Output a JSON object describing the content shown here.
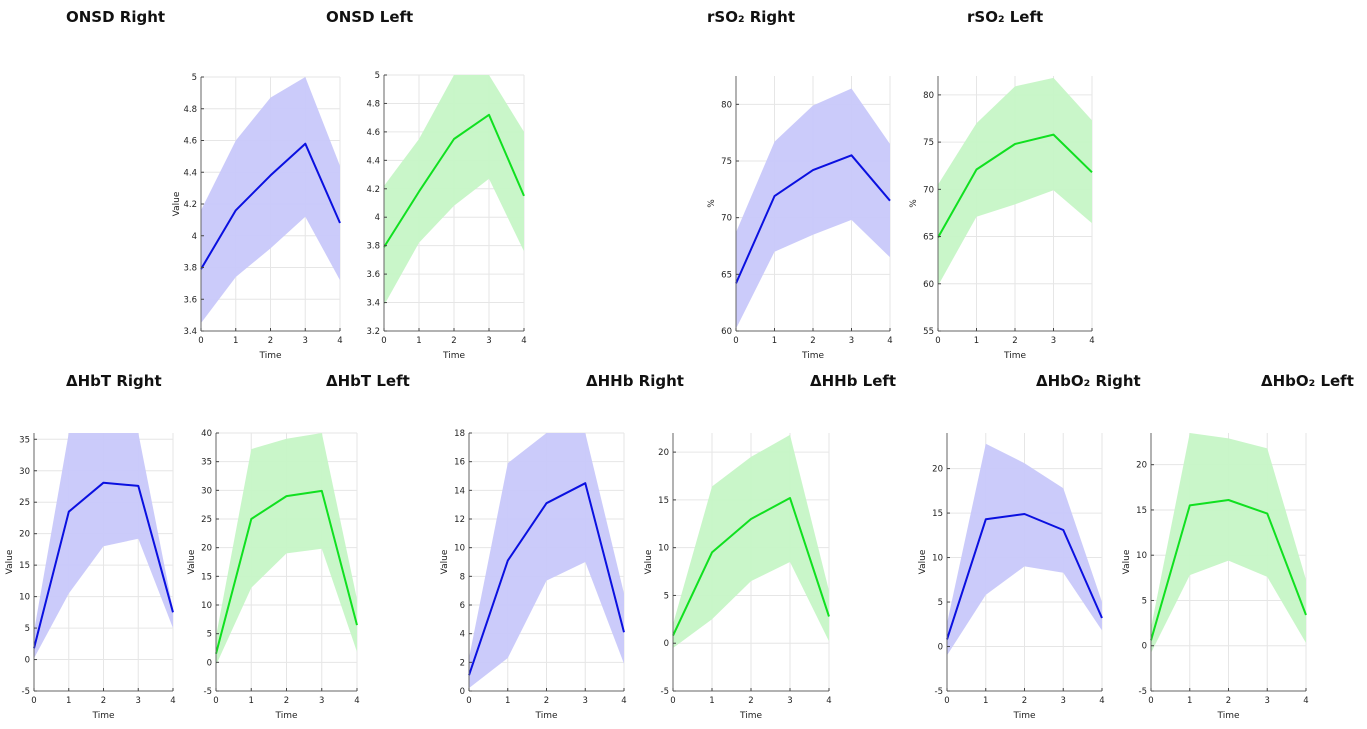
{
  "colors": {
    "right_line": "#0a10e0",
    "right_band": "#c8c8fa",
    "left_line": "#10e020",
    "left_band": "#c6f6c6"
  },
  "titles": [
    {
      "id": "onsd-right",
      "text": "ONSD Right"
    },
    {
      "id": "onsd-left",
      "text": "ONSD Left"
    },
    {
      "id": "rso2-right",
      "text": "rSO₂ Right"
    },
    {
      "id": "rso2-left",
      "text": "rSO₂ Left"
    },
    {
      "id": "dhbt-right",
      "text": "ΔHbT Right"
    },
    {
      "id": "dhbt-left",
      "text": "ΔHbT Left"
    },
    {
      "id": "dhhb-right",
      "text": "ΔHHb Right"
    },
    {
      "id": "dhhb-left",
      "text": "ΔHHb Left"
    },
    {
      "id": "dhbo2-right",
      "text": "ΔHbO₂ Right"
    },
    {
      "id": "dhbo2-left",
      "text": "ΔHbO₂ Left"
    }
  ],
  "chart_data": [
    {
      "id": "onsd-right",
      "type": "line",
      "side": "right",
      "xlabel": "Time",
      "ylabel": "Value",
      "x": [
        0,
        1,
        2,
        3,
        4
      ],
      "xlim": [
        0,
        4
      ],
      "ylim": [
        3.4,
        5.0
      ],
      "yticks": [
        3.4,
        3.6,
        3.8,
        4,
        4.2,
        4.4,
        4.6,
        4.8,
        5
      ],
      "ytick_labels": [
        "3.4",
        "3.6",
        "3.8",
        "4",
        "4.2",
        "4.4",
        "4.6",
        "4.8",
        "5"
      ],
      "series": [
        {
          "values": [
            3.79,
            4.16,
            4.38,
            4.58,
            4.08
          ],
          "lower": [
            3.45,
            3.74,
            3.92,
            4.12,
            3.72
          ],
          "upper": [
            4.16,
            4.6,
            4.87,
            5.05,
            4.44
          ]
        }
      ]
    },
    {
      "id": "onsd-left",
      "type": "line",
      "side": "left",
      "xlabel": "Time",
      "ylabel": "",
      "x": [
        0,
        1,
        2,
        3,
        4
      ],
      "xlim": [
        0,
        4
      ],
      "ylim": [
        3.2,
        5.0
      ],
      "yticks": [
        3.2,
        3.4,
        3.6,
        3.8,
        4,
        4.2,
        4.4,
        4.6,
        4.8,
        5
      ],
      "ytick_labels": [
        "3.2",
        "3.4",
        "3.6",
        "3.8",
        "4",
        "4.2",
        "4.4",
        "4.6",
        "4.8",
        "5"
      ],
      "series": [
        {
          "values": [
            3.79,
            4.18,
            4.55,
            4.72,
            4.15
          ],
          "lower": [
            3.38,
            3.82,
            4.08,
            4.27,
            3.76
          ],
          "upper": [
            4.22,
            4.55,
            5.0,
            5.0,
            4.6
          ]
        }
      ]
    },
    {
      "id": "rso2-right",
      "type": "line",
      "side": "right",
      "xlabel": "Time",
      "ylabel": "%",
      "x": [
        0,
        1,
        2,
        3,
        4
      ],
      "xlim": [
        0,
        4
      ],
      "ylim": [
        60,
        82.5
      ],
      "yticks": [
        60,
        65,
        70,
        75,
        80
      ],
      "ytick_labels": [
        "60",
        "65",
        "70",
        "75",
        "80"
      ],
      "series": [
        {
          "values": [
            64.2,
            71.9,
            74.2,
            75.5,
            71.5
          ],
          "lower": [
            60.2,
            67.0,
            68.5,
            69.8,
            66.5
          ],
          "upper": [
            68.7,
            76.7,
            79.9,
            81.4,
            76.5
          ]
        }
      ]
    },
    {
      "id": "rso2-left",
      "type": "line",
      "side": "left",
      "xlabel": "Time",
      "ylabel": "%",
      "x": [
        0,
        1,
        2,
        3,
        4
      ],
      "xlim": [
        0,
        4
      ],
      "ylim": [
        55,
        82
      ],
      "yticks": [
        55,
        60,
        65,
        70,
        75,
        80
      ],
      "ytick_labels": [
        "55",
        "60",
        "65",
        "70",
        "75",
        "80"
      ],
      "series": [
        {
          "values": [
            64.9,
            72.1,
            74.8,
            75.8,
            71.8
          ],
          "lower": [
            59.8,
            67.1,
            68.4,
            69.9,
            66.4
          ],
          "upper": [
            70.5,
            77.0,
            80.9,
            81.8,
            77.3
          ]
        }
      ]
    },
    {
      "id": "dhbt-right",
      "type": "line",
      "side": "right",
      "xlabel": "Time",
      "ylabel": "Value",
      "x": [
        0,
        1,
        2,
        3,
        4
      ],
      "xlim": [
        0,
        4
      ],
      "ylim": [
        -5,
        36
      ],
      "yticks": [
        -5,
        0,
        5,
        10,
        15,
        20,
        25,
        30,
        35
      ],
      "ytick_labels": [
        "-5",
        "0",
        "5",
        "10",
        "15",
        "20",
        "25",
        "30",
        "35"
      ],
      "series": [
        {
          "values": [
            1.8,
            23.5,
            28.1,
            27.6,
            7.5
          ],
          "lower": [
            0.2,
            10.5,
            18.0,
            19.2,
            5.0
          ],
          "upper": [
            4.5,
            36,
            36,
            36,
            8.0
          ]
        }
      ]
    },
    {
      "id": "dhbt-left",
      "type": "line",
      "side": "left",
      "xlabel": "Time",
      "ylabel": "Value",
      "x": [
        0,
        1,
        2,
        3,
        4
      ],
      "xlim": [
        0,
        4
      ],
      "ylim": [
        -5,
        40
      ],
      "yticks": [
        -5,
        0,
        5,
        10,
        15,
        20,
        25,
        30,
        35,
        40
      ],
      "ytick_labels": [
        "-5",
        "0",
        "5",
        "10",
        "15",
        "20",
        "25",
        "30",
        "35",
        "40"
      ],
      "series": [
        {
          "values": [
            1.5,
            25.0,
            29.0,
            29.9,
            6.5
          ],
          "lower": [
            -0.5,
            13.0,
            19.0,
            19.8,
            1.8
          ],
          "upper": [
            4.5,
            37.2,
            39.0,
            40.0,
            11.0
          ]
        }
      ]
    },
    {
      "id": "dhhb-right",
      "type": "line",
      "side": "right",
      "xlabel": "Time",
      "ylabel": "Value",
      "x": [
        0,
        1,
        2,
        3,
        4
      ],
      "xlim": [
        0,
        4
      ],
      "ylim": [
        0,
        18
      ],
      "yticks": [
        0,
        2,
        4,
        6,
        8,
        10,
        12,
        14,
        16,
        18
      ],
      "ytick_labels": [
        "0",
        "2",
        "4",
        "6",
        "8",
        "10",
        "12",
        "14",
        "16",
        "18"
      ],
      "series": [
        {
          "values": [
            1.1,
            9.1,
            13.1,
            14.5,
            4.1
          ],
          "lower": [
            0.2,
            2.3,
            7.7,
            9.0,
            1.9
          ],
          "upper": [
            2.3,
            15.9,
            18,
            18,
            6.8
          ]
        }
      ]
    },
    {
      "id": "dhhb-left",
      "type": "line",
      "side": "left",
      "xlabel": "Time",
      "ylabel": "Value",
      "x": [
        0,
        1,
        2,
        3,
        4
      ],
      "xlim": [
        0,
        4
      ],
      "ylim": [
        -5,
        22
      ],
      "yticks": [
        -5,
        0,
        5,
        10,
        15,
        20
      ],
      "ytick_labels": [
        "-5",
        "0",
        "5",
        "10",
        "15",
        "20"
      ],
      "series": [
        {
          "values": [
            0.8,
            9.5,
            13.0,
            15.2,
            2.8
          ],
          "lower": [
            -0.5,
            2.5,
            6.5,
            8.5,
            0.2
          ],
          "upper": [
            2.0,
            16.4,
            19.5,
            21.8,
            5.5
          ]
        }
      ]
    },
    {
      "id": "dhbo2-right",
      "type": "line",
      "side": "right",
      "xlabel": "Time",
      "ylabel": "Value",
      "x": [
        0,
        1,
        2,
        3,
        4
      ],
      "xlim": [
        0,
        4
      ],
      "ylim": [
        -5,
        24
      ],
      "yticks": [
        -5,
        0,
        5,
        10,
        15,
        20
      ],
      "ytick_labels": [
        "-5",
        "0",
        "5",
        "10",
        "15",
        "20"
      ],
      "series": [
        {
          "values": [
            0.8,
            14.3,
            14.9,
            13.1,
            3.2
          ],
          "lower": [
            -1.0,
            5.8,
            9.0,
            8.3,
            1.8
          ],
          "upper": [
            2.6,
            22.8,
            20.6,
            17.8,
            5.0
          ]
        }
      ]
    },
    {
      "id": "dhbo2-left",
      "type": "line",
      "side": "left",
      "xlabel": "Time",
      "ylabel": "Value",
      "x": [
        0,
        1,
        2,
        3,
        4
      ],
      "xlim": [
        0,
        4
      ],
      "ylim": [
        -5,
        23.5
      ],
      "yticks": [
        -5,
        0,
        5,
        10,
        15,
        20
      ],
      "ytick_labels": [
        "-5",
        "0",
        "5",
        "10",
        "15",
        "20"
      ],
      "series": [
        {
          "values": [
            0.6,
            15.5,
            16.1,
            14.6,
            3.4
          ],
          "lower": [
            -0.8,
            7.8,
            9.4,
            7.6,
            0.3
          ],
          "upper": [
            2.0,
            23.5,
            22.9,
            21.8,
            7.3
          ]
        }
      ]
    }
  ]
}
